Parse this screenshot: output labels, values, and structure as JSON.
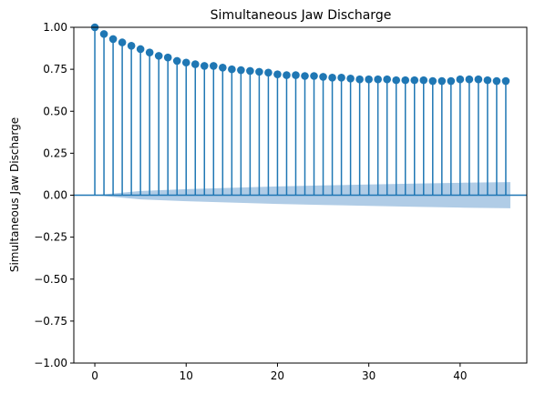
{
  "chart_data": {
    "type": "stem",
    "title": "Simultaneous Jaw Discharge",
    "xlabel": "",
    "ylabel": "Simultaneous Jaw Discharge",
    "xlim": [
      -2.3,
      47.3
    ],
    "ylim": [
      -1.0,
      1.0
    ],
    "x_ticks": [
      0,
      10,
      20,
      30,
      40
    ],
    "y_ticks": [
      -1.0,
      -0.75,
      -0.5,
      -0.25,
      0.0,
      0.25,
      0.5,
      0.75,
      1.0
    ],
    "x_tick_labels": [
      "0",
      "10",
      "20",
      "30",
      "40"
    ],
    "y_tick_labels": [
      "−1.00",
      "−0.75",
      "−0.50",
      "−0.25",
      "0.00",
      "0.25",
      "0.50",
      "0.75",
      "1.00"
    ],
    "grid": false,
    "lags": [
      0,
      1,
      2,
      3,
      4,
      5,
      6,
      7,
      8,
      9,
      10,
      11,
      12,
      13,
      14,
      15,
      16,
      17,
      18,
      19,
      20,
      21,
      22,
      23,
      24,
      25,
      26,
      27,
      28,
      29,
      30,
      31,
      32,
      33,
      34,
      35,
      36,
      37,
      38,
      39,
      40,
      41,
      42,
      43,
      44,
      45
    ],
    "values": [
      1.0,
      0.96,
      0.93,
      0.91,
      0.89,
      0.87,
      0.85,
      0.83,
      0.82,
      0.8,
      0.79,
      0.78,
      0.77,
      0.77,
      0.76,
      0.75,
      0.745,
      0.74,
      0.735,
      0.73,
      0.72,
      0.715,
      0.715,
      0.71,
      0.71,
      0.705,
      0.7,
      0.7,
      0.695,
      0.69,
      0.69,
      0.69,
      0.69,
      0.685,
      0.685,
      0.685,
      0.685,
      0.68,
      0.68,
      0.68,
      0.69,
      0.69,
      0.69,
      0.685,
      0.68,
      0.68
    ],
    "confidence_band": {
      "lags": [
        0,
        5,
        10,
        15,
        20,
        25,
        30,
        35,
        40,
        45.5
      ],
      "upper": [
        0.0,
        0.025,
        0.036,
        0.044,
        0.052,
        0.058,
        0.064,
        0.069,
        0.074,
        0.078
      ],
      "lower": [
        0.0,
        -0.025,
        -0.036,
        -0.044,
        -0.052,
        -0.058,
        -0.064,
        -0.069,
        -0.074,
        -0.078
      ]
    },
    "colors": {
      "stem": "#1f77b4",
      "marker": "#1f77b4",
      "zero_line": "#1f77b4",
      "band": "#b0cce6"
    }
  }
}
